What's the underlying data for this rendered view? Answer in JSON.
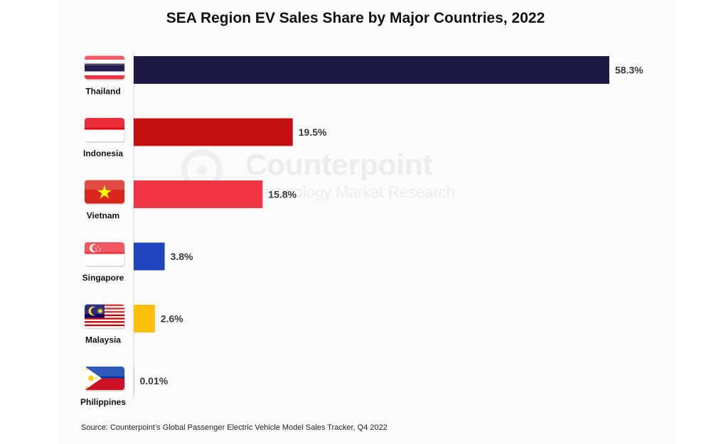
{
  "chart_data": {
    "type": "bar",
    "orientation": "horizontal",
    "title": "SEA Region EV Sales Share by Major Countries, 2022",
    "categories": [
      "Thailand",
      "Indonesia",
      "Vietnam",
      "Singapore",
      "Malaysia",
      "Philippines"
    ],
    "values": [
      58.3,
      19.5,
      15.8,
      3.8,
      2.6,
      0.01
    ],
    "value_labels": [
      "58.3%",
      "19.5%",
      "15.8%",
      "3.8%",
      "2.6%",
      "0.01%"
    ],
    "unit": "%",
    "xlim": [
      0,
      58.3
    ],
    "grid": false,
    "legend": "none",
    "bar_colors": [
      "#1c1a44",
      "#c40f10",
      "#ef3444",
      "#1f45bd",
      "#fbbf0c",
      "#9a9a9a"
    ],
    "category_icons": [
      "thailand-flag-icon",
      "indonesia-flag-icon",
      "vietnam-flag-icon",
      "singapore-flag-icon",
      "malaysia-flag-icon",
      "philippines-flag-icon"
    ],
    "source": "Source: Counterpoint’s Global Passenger Electric Vehicle Model Sales Tracker, Q4 2022"
  },
  "watermark": {
    "name": "Counterpoint",
    "tagline": "Technology Market Research"
  }
}
